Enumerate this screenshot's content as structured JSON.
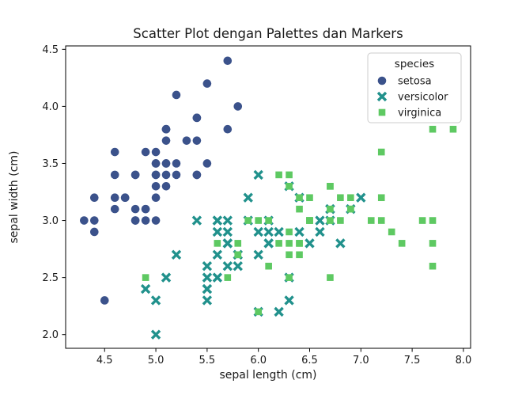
{
  "chart_data": {
    "type": "scatter",
    "title": "Scatter Plot dengan Palettes dan Markers",
    "xlabel": "sepal length (cm)",
    "ylabel": "sepal width (cm)",
    "xlim": [
      4.12,
      8.07
    ],
    "ylim": [
      1.88,
      4.53
    ],
    "xticks": [
      4.5,
      5.0,
      5.5,
      6.0,
      6.5,
      7.0,
      7.5,
      8.0
    ],
    "yticks": [
      2.0,
      2.5,
      3.0,
      3.5,
      4.0,
      4.5
    ],
    "grid": false,
    "legend": {
      "title": "species",
      "position": "upper right"
    },
    "series": [
      {
        "name": "setosa",
        "marker": "circle",
        "color": "#3b528b",
        "points": [
          [
            5.1,
            3.5
          ],
          [
            4.9,
            3.0
          ],
          [
            4.7,
            3.2
          ],
          [
            4.6,
            3.1
          ],
          [
            5.0,
            3.6
          ],
          [
            5.4,
            3.9
          ],
          [
            4.6,
            3.4
          ],
          [
            5.0,
            3.4
          ],
          [
            4.4,
            2.9
          ],
          [
            4.9,
            3.1
          ],
          [
            5.4,
            3.7
          ],
          [
            4.8,
            3.4
          ],
          [
            4.8,
            3.0
          ],
          [
            4.3,
            3.0
          ],
          [
            5.8,
            4.0
          ],
          [
            5.7,
            4.4
          ],
          [
            5.4,
            3.9
          ],
          [
            5.1,
            3.5
          ],
          [
            5.7,
            3.8
          ],
          [
            5.1,
            3.8
          ],
          [
            5.4,
            3.4
          ],
          [
            5.1,
            3.7
          ],
          [
            4.6,
            3.6
          ],
          [
            5.1,
            3.3
          ],
          [
            4.8,
            3.4
          ],
          [
            5.0,
            3.0
          ],
          [
            5.0,
            3.4
          ],
          [
            5.2,
            3.5
          ],
          [
            5.2,
            3.4
          ],
          [
            4.7,
            3.2
          ],
          [
            4.8,
            3.1
          ],
          [
            5.4,
            3.4
          ],
          [
            5.2,
            4.1
          ],
          [
            5.5,
            4.2
          ],
          [
            4.9,
            3.1
          ],
          [
            5.0,
            3.2
          ],
          [
            5.5,
            3.5
          ],
          [
            4.9,
            3.6
          ],
          [
            4.4,
            3.0
          ],
          [
            5.1,
            3.4
          ],
          [
            5.0,
            3.5
          ],
          [
            4.5,
            2.3
          ],
          [
            4.4,
            3.2
          ],
          [
            5.0,
            3.5
          ],
          [
            5.1,
            3.8
          ],
          [
            4.8,
            3.0
          ],
          [
            5.1,
            3.8
          ],
          [
            4.6,
            3.2
          ],
          [
            5.3,
            3.7
          ],
          [
            5.0,
            3.3
          ]
        ]
      },
      {
        "name": "versicolor",
        "marker": "x",
        "color": "#21918c",
        "points": [
          [
            7.0,
            3.2
          ],
          [
            6.4,
            3.2
          ],
          [
            6.9,
            3.1
          ],
          [
            5.5,
            2.3
          ],
          [
            6.5,
            2.8
          ],
          [
            5.7,
            2.8
          ],
          [
            6.3,
            3.3
          ],
          [
            4.9,
            2.4
          ],
          [
            6.6,
            2.9
          ],
          [
            5.2,
            2.7
          ],
          [
            5.0,
            2.0
          ],
          [
            5.9,
            3.0
          ],
          [
            6.0,
            2.2
          ],
          [
            6.1,
            2.9
          ],
          [
            5.6,
            2.9
          ],
          [
            6.7,
            3.1
          ],
          [
            5.6,
            3.0
          ],
          [
            5.8,
            2.7
          ],
          [
            6.2,
            2.2
          ],
          [
            5.6,
            2.5
          ],
          [
            5.9,
            3.2
          ],
          [
            6.1,
            2.8
          ],
          [
            6.3,
            2.5
          ],
          [
            6.1,
            2.8
          ],
          [
            6.4,
            2.9
          ],
          [
            6.6,
            3.0
          ],
          [
            6.8,
            2.8
          ],
          [
            6.7,
            3.0
          ],
          [
            6.0,
            2.9
          ],
          [
            5.7,
            2.6
          ],
          [
            5.5,
            2.4
          ],
          [
            5.5,
            2.4
          ],
          [
            5.8,
            2.7
          ],
          [
            6.0,
            2.7
          ],
          [
            5.4,
            3.0
          ],
          [
            6.0,
            3.4
          ],
          [
            6.7,
            3.1
          ],
          [
            6.3,
            2.3
          ],
          [
            5.6,
            3.0
          ],
          [
            5.5,
            2.5
          ],
          [
            5.5,
            2.6
          ],
          [
            6.1,
            3.0
          ],
          [
            5.8,
            2.6
          ],
          [
            5.0,
            2.3
          ],
          [
            5.6,
            2.7
          ],
          [
            5.7,
            3.0
          ],
          [
            5.7,
            2.9
          ],
          [
            6.2,
            2.9
          ],
          [
            5.1,
            2.5
          ],
          [
            5.7,
            2.8
          ]
        ]
      },
      {
        "name": "virginica",
        "marker": "square",
        "color": "#5ec962",
        "points": [
          [
            6.3,
            3.3
          ],
          [
            5.8,
            2.7
          ],
          [
            7.1,
            3.0
          ],
          [
            6.3,
            2.9
          ],
          [
            6.5,
            3.0
          ],
          [
            7.6,
            3.0
          ],
          [
            4.9,
            2.5
          ],
          [
            7.3,
            2.9
          ],
          [
            6.7,
            2.5
          ],
          [
            7.2,
            3.6
          ],
          [
            6.5,
            3.2
          ],
          [
            6.4,
            2.7
          ],
          [
            6.8,
            3.0
          ],
          [
            5.7,
            2.5
          ],
          [
            5.8,
            2.8
          ],
          [
            6.4,
            3.2
          ],
          [
            6.5,
            3.0
          ],
          [
            7.7,
            3.8
          ],
          [
            7.7,
            2.6
          ],
          [
            6.0,
            2.2
          ],
          [
            6.9,
            3.2
          ],
          [
            5.6,
            2.8
          ],
          [
            7.7,
            2.8
          ],
          [
            6.3,
            2.7
          ],
          [
            6.7,
            3.3
          ],
          [
            7.2,
            3.2
          ],
          [
            6.2,
            2.8
          ],
          [
            6.1,
            3.0
          ],
          [
            6.4,
            2.8
          ],
          [
            7.2,
            3.0
          ],
          [
            7.4,
            2.8
          ],
          [
            7.9,
            3.8
          ],
          [
            6.4,
            2.8
          ],
          [
            6.3,
            2.8
          ],
          [
            6.1,
            2.6
          ],
          [
            7.7,
            3.0
          ],
          [
            6.3,
            3.4
          ],
          [
            6.4,
            3.1
          ],
          [
            6.0,
            3.0
          ],
          [
            6.9,
            3.1
          ],
          [
            6.7,
            3.1
          ],
          [
            6.9,
            3.1
          ],
          [
            5.8,
            2.7
          ],
          [
            6.8,
            3.2
          ],
          [
            6.7,
            3.3
          ],
          [
            6.7,
            3.0
          ],
          [
            6.3,
            2.5
          ],
          [
            6.5,
            3.0
          ],
          [
            6.2,
            3.4
          ],
          [
            5.9,
            3.0
          ]
        ]
      }
    ]
  }
}
